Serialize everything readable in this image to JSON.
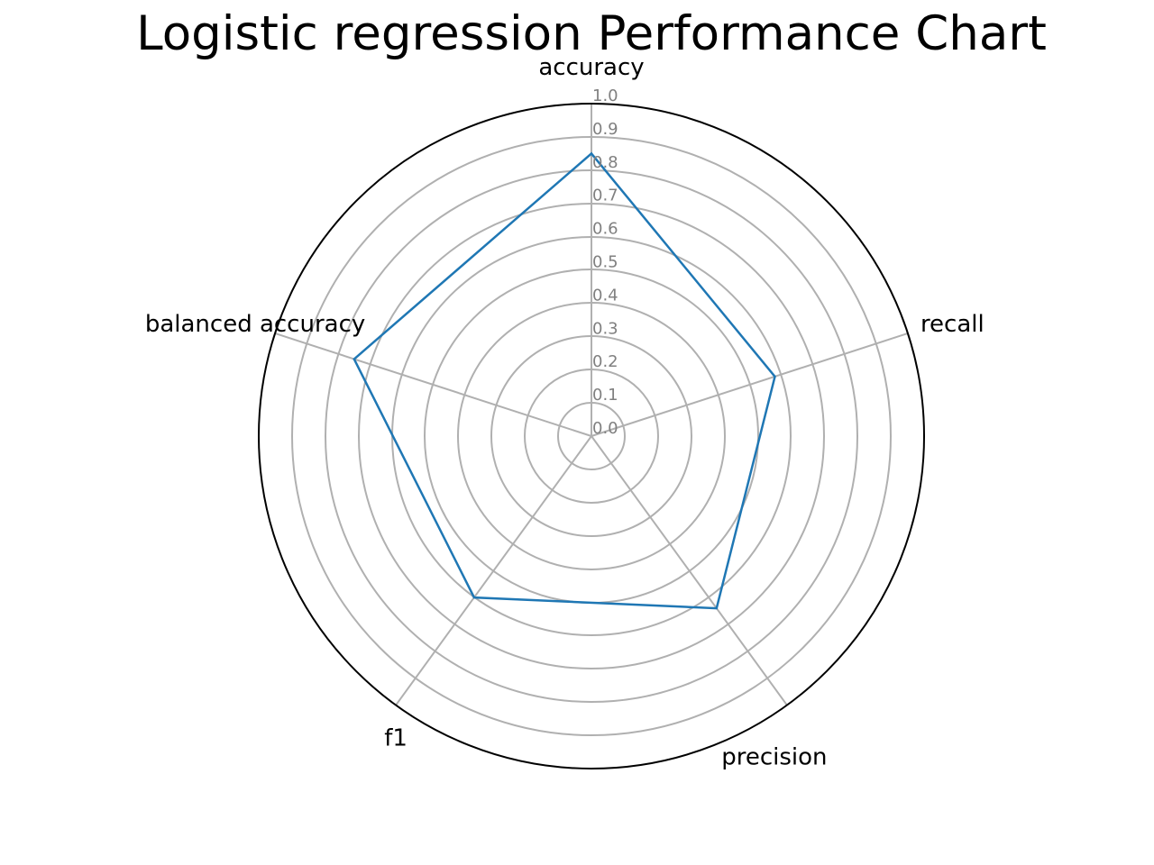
{
  "chart_data": {
    "type": "radar",
    "title": "Logistic regression Performance Chart",
    "axes": [
      "accuracy",
      "recall",
      "precision",
      "f1",
      "balanced accuracy"
    ],
    "series": [
      {
        "values": [
          0.85,
          0.58,
          0.64,
          0.6,
          0.75
        ]
      }
    ],
    "rlim": [
      0.0,
      1.0
    ],
    "r_ticks": [
      "0.0",
      "0.1",
      "0.2",
      "0.3",
      "0.4",
      "0.5",
      "0.6",
      "0.7",
      "0.8",
      "0.9",
      "1.0"
    ],
    "grid": true,
    "colors": {
      "series": "#1f77b4",
      "grid": "#b0b0b0",
      "outer_ring": "#000000",
      "tick_label": "#808080"
    }
  }
}
